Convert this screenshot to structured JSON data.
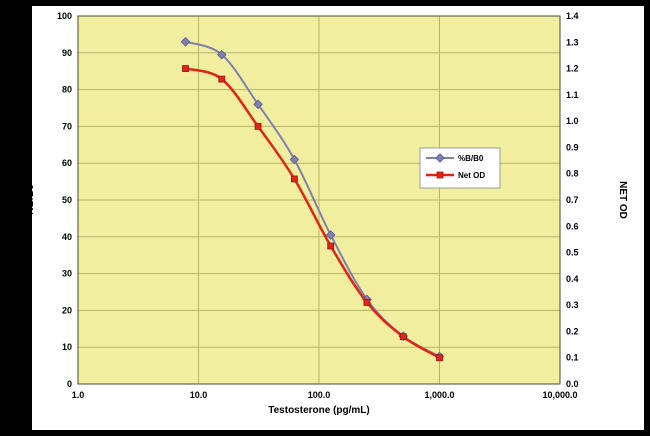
{
  "window": {
    "frame_color": "#000000",
    "panel_color": "#ffffff"
  },
  "chart_data": {
    "type": "line",
    "x_scale": "log",
    "x": [
      7.8,
      15.6,
      31.2,
      62.5,
      125,
      250,
      500,
      1000
    ],
    "series": [
      {
        "name": "%B/B0",
        "axis": "left",
        "color": "#8080b0",
        "marker_color": "#5a5a90",
        "marker": "diamond",
        "line_width": 2,
        "values": [
          93,
          89.5,
          76,
          61,
          40.5,
          23,
          13,
          7.5
        ]
      },
      {
        "name": "Net OD",
        "axis": "right",
        "color": "#e02418",
        "marker_color": "#9c1410",
        "marker": "square",
        "line_width": 2.5,
        "values": [
          1.2,
          1.16,
          0.98,
          0.78,
          0.525,
          0.31,
          0.18,
          0.1
        ]
      }
    ],
    "title": "",
    "xlabel": "Testosterone (pg/mL)",
    "ylabel_left": "%B/B0",
    "ylabel_right": "NET OD",
    "xlim": [
      1,
      10000
    ],
    "x_ticks": [
      {
        "value": 1,
        "label": "1.0"
      },
      {
        "value": 10,
        "label": "10.0"
      },
      {
        "value": 100,
        "label": "100.0"
      },
      {
        "value": 1000,
        "label": "1,000.0"
      },
      {
        "value": 10000,
        "label": "10,000.0"
      }
    ],
    "ylim_left": [
      0,
      100
    ],
    "y_ticks_left": [
      {
        "value": 0,
        "label": "0"
      },
      {
        "value": 10,
        "label": "10"
      },
      {
        "value": 20,
        "label": "20"
      },
      {
        "value": 30,
        "label": "30"
      },
      {
        "value": 40,
        "label": "40"
      },
      {
        "value": 50,
        "label": "50"
      },
      {
        "value": 60,
        "label": "60"
      },
      {
        "value": 70,
        "label": "70"
      },
      {
        "value": 80,
        "label": "80"
      },
      {
        "value": 90,
        "label": "90"
      },
      {
        "value": 100,
        "label": "100"
      }
    ],
    "ylim_right": [
      0,
      1.4
    ],
    "y_ticks_right": [
      {
        "value": 0.0,
        "label": "0.0"
      },
      {
        "value": 0.1,
        "label": "0.1"
      },
      {
        "value": 0.2,
        "label": "0.2"
      },
      {
        "value": 0.3,
        "label": "0.3"
      },
      {
        "value": 0.4,
        "label": "0.4"
      },
      {
        "value": 0.5,
        "label": "0.5"
      },
      {
        "value": 0.6,
        "label": "0.6"
      },
      {
        "value": 0.7,
        "label": "0.7"
      },
      {
        "value": 0.8,
        "label": "0.8"
      },
      {
        "value": 0.9,
        "label": "0.9"
      },
      {
        "value": 1.0,
        "label": "1.0"
      },
      {
        "value": 1.1,
        "label": "1.1"
      },
      {
        "value": 1.2,
        "label": "1.2"
      },
      {
        "value": 1.3,
        "label": "1.3"
      },
      {
        "value": 1.4,
        "label": "1.4"
      }
    ],
    "grid": true,
    "grid_vertical_at": [
      10,
      100,
      1000
    ],
    "plot_bg": "#f1ef9f",
    "grid_color": "#b5b468",
    "plot_border_color": "#4a4a3a",
    "legend": {
      "position": "middle-right",
      "border_color": "#888888",
      "bg": "#ffffff",
      "entries": [
        "%B/B0",
        "Net OD"
      ]
    }
  }
}
